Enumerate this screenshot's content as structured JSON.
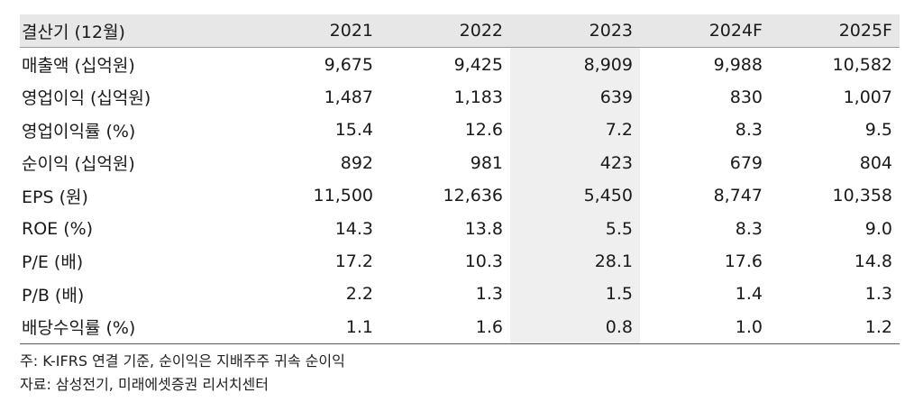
{
  "table": {
    "headers": [
      "결산기 (12월)",
      "2021",
      "2022",
      "2023",
      "2024F",
      "2025F"
    ],
    "rows": [
      {
        "label": "매출액 (십억원)",
        "values": [
          "9,675",
          "9,425",
          "8,909",
          "9,988",
          "10,582"
        ]
      },
      {
        "label": "영업이익 (십억원)",
        "values": [
          "1,487",
          "1,183",
          "639",
          "830",
          "1,007"
        ]
      },
      {
        "label": "영업이익률 (%)",
        "values": [
          "15.4",
          "12.6",
          "7.2",
          "8.3",
          "9.5"
        ]
      },
      {
        "label": "순이익 (십억원)",
        "values": [
          "892",
          "981",
          "423",
          "679",
          "804"
        ]
      },
      {
        "label": "EPS (원)",
        "values": [
          "11,500",
          "12,636",
          "5,450",
          "8,747",
          "10,358"
        ]
      },
      {
        "label": "ROE (%)",
        "values": [
          "14.3",
          "13.8",
          "5.5",
          "8.3",
          "9.0"
        ]
      },
      {
        "label": "P/E (배)",
        "values": [
          "17.2",
          "10.3",
          "28.1",
          "17.6",
          "14.8"
        ]
      },
      {
        "label": "P/B (배)",
        "values": [
          "2.2",
          "1.3",
          "1.5",
          "1.4",
          "1.3"
        ]
      },
      {
        "label": "배당수익률 (%)",
        "values": [
          "1.1",
          "1.6",
          "0.8",
          "1.0",
          "1.2"
        ]
      }
    ]
  },
  "notes": {
    "footnote": "주: K-IFRS 연결 기준, 순이익은 지배주주 귀속 순이익",
    "source": "자료: 삼성전기, 미래에셋증권 리서치센터"
  }
}
